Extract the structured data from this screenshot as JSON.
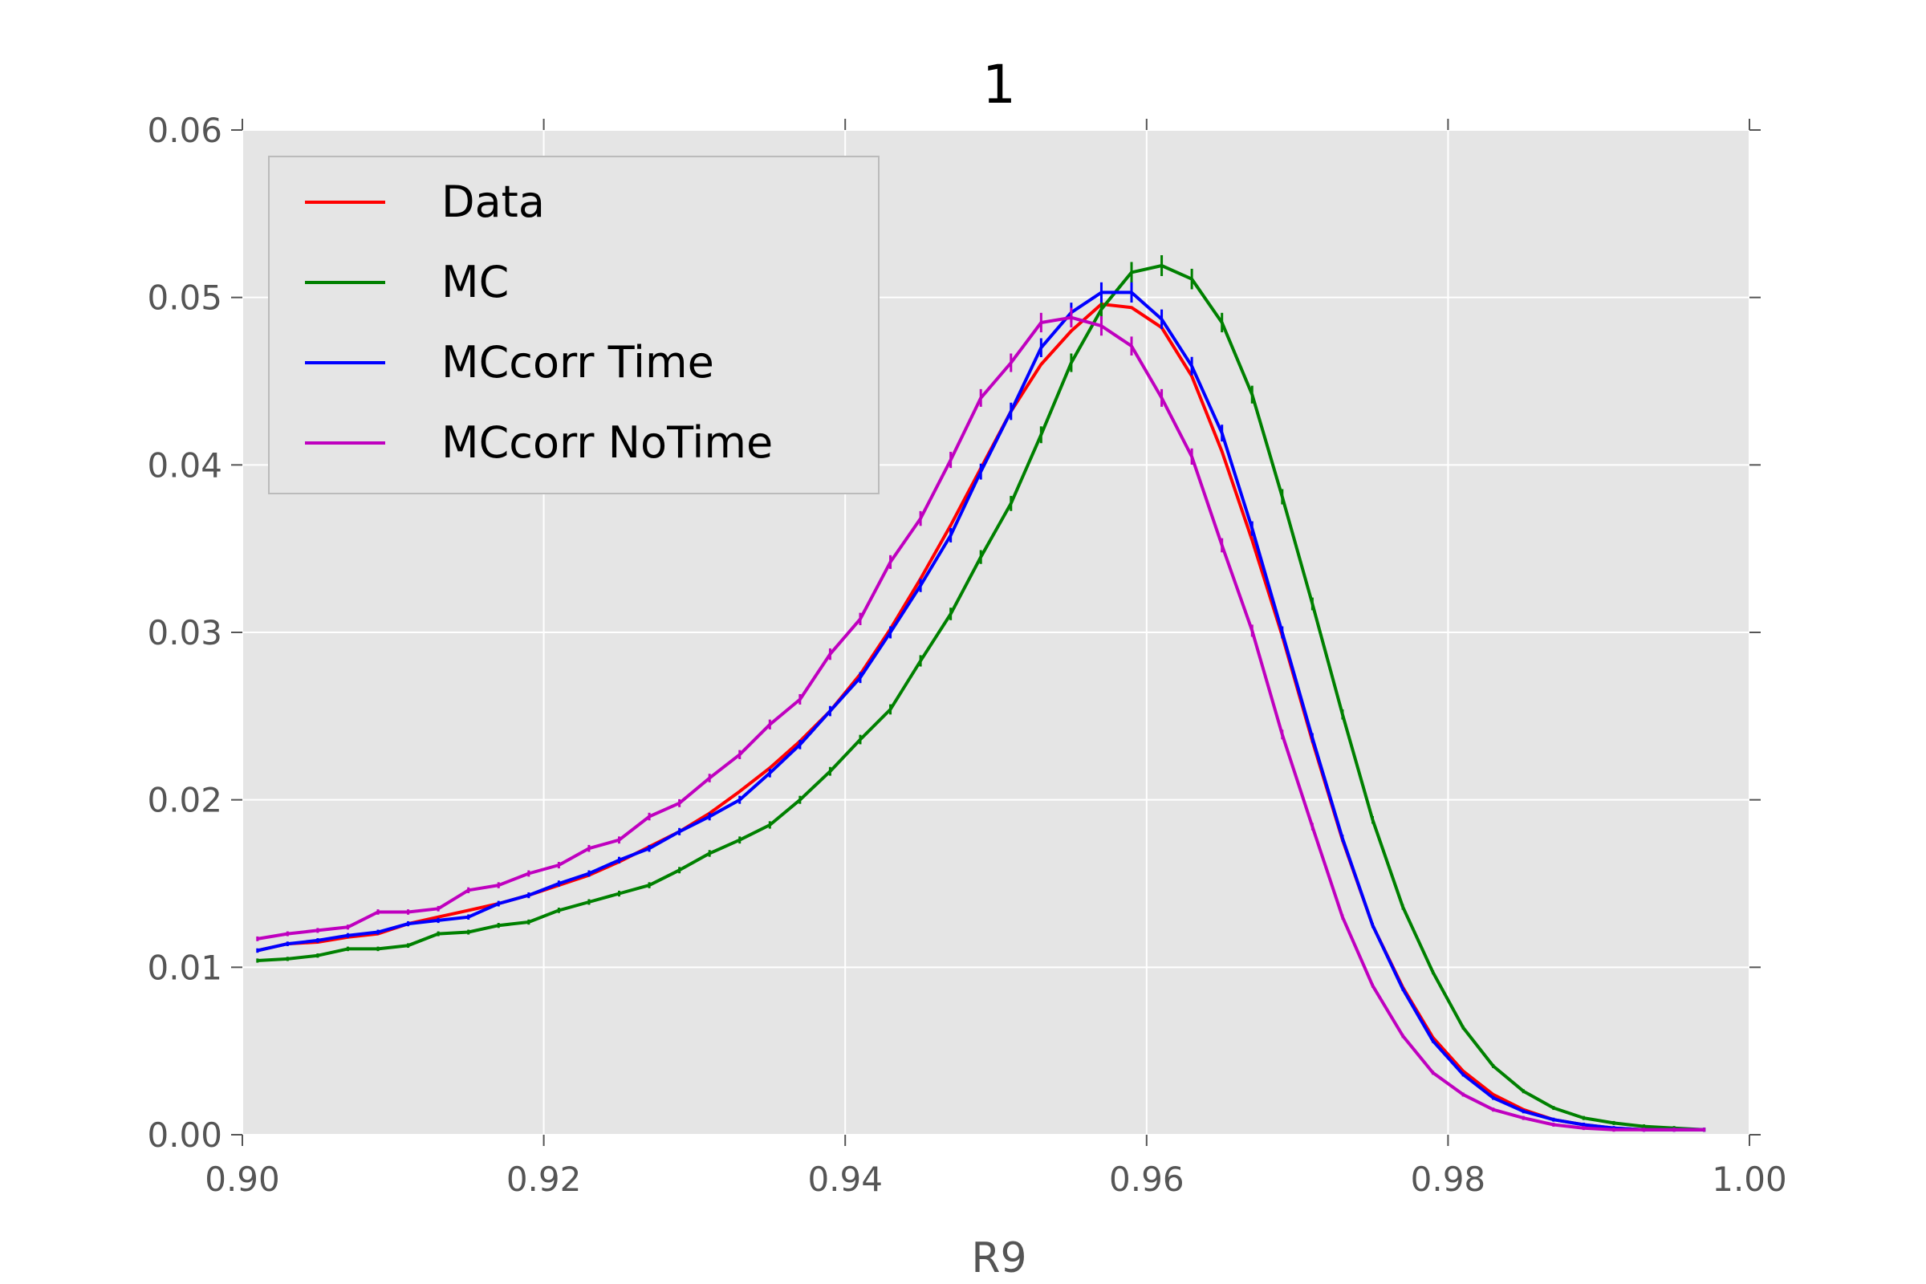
{
  "chart_data": {
    "type": "line",
    "title": "1",
    "xlabel": "R9",
    "ylabel": "",
    "xlim": [
      0.9,
      1.0
    ],
    "ylim": [
      0.0,
      0.06
    ],
    "xticks": [
      0.9,
      0.92,
      0.94,
      0.96,
      0.98,
      1.0
    ],
    "xtick_labels": [
      "0.90",
      "0.92",
      "0.94",
      "0.96",
      "0.98",
      "1.00"
    ],
    "yticks": [
      0.0,
      0.01,
      0.02,
      0.03,
      0.04,
      0.05,
      0.06
    ],
    "ytick_labels": [
      "0.00",
      "0.01",
      "0.02",
      "0.03",
      "0.04",
      "0.05",
      "0.06"
    ],
    "grid": true,
    "legend_position": "top-left",
    "x": [
      0.901,
      0.903,
      0.905,
      0.907,
      0.909,
      0.911,
      0.913,
      0.915,
      0.917,
      0.919,
      0.921,
      0.923,
      0.925,
      0.927,
      0.929,
      0.931,
      0.933,
      0.935,
      0.937,
      0.939,
      0.941,
      0.943,
      0.945,
      0.947,
      0.949,
      0.951,
      0.953,
      0.955,
      0.957,
      0.959,
      0.961,
      0.963,
      0.965,
      0.967,
      0.969,
      0.971,
      0.973,
      0.975,
      0.977,
      0.979,
      0.981,
      0.983,
      0.985,
      0.987,
      0.989,
      0.991,
      0.993,
      0.995,
      0.997
    ],
    "series": [
      {
        "name": "Data",
        "color": "#ff0000",
        "error_bars": false,
        "values": [
          0.011,
          0.0114,
          0.0115,
          0.0118,
          0.012,
          0.0126,
          0.013,
          0.0134,
          0.0138,
          0.0143,
          0.0149,
          0.0155,
          0.0163,
          0.0172,
          0.0181,
          0.0192,
          0.0205,
          0.0219,
          0.0235,
          0.0253,
          0.0275,
          0.0302,
          0.0332,
          0.0364,
          0.0398,
          0.0432,
          0.046,
          0.048,
          0.0496,
          0.0494,
          0.0482,
          0.0453,
          0.0408,
          0.0355,
          0.0298,
          0.0235,
          0.0176,
          0.0125,
          0.0088,
          0.0058,
          0.0038,
          0.0024,
          0.0015,
          0.0009,
          0.0006,
          0.0004,
          0.0003,
          0.0003,
          0.0003
        ]
      },
      {
        "name": "MC",
        "color": "#008000",
        "error_bars": true,
        "values": [
          0.0104,
          0.0105,
          0.0107,
          0.0111,
          0.0111,
          0.0113,
          0.012,
          0.0121,
          0.0125,
          0.0127,
          0.0134,
          0.0139,
          0.0144,
          0.0149,
          0.0158,
          0.0168,
          0.0176,
          0.0185,
          0.02,
          0.0217,
          0.0236,
          0.0254,
          0.0283,
          0.0311,
          0.0345,
          0.0377,
          0.0418,
          0.0461,
          0.0493,
          0.0515,
          0.0519,
          0.0511,
          0.0485,
          0.0442,
          0.0381,
          0.0317,
          0.0251,
          0.0188,
          0.0136,
          0.0097,
          0.0064,
          0.0041,
          0.0026,
          0.0016,
          0.001,
          0.0007,
          0.0005,
          0.0004,
          0.0003
        ]
      },
      {
        "name": "MCcorr Time",
        "color": "#0000ff",
        "error_bars": true,
        "values": [
          0.011,
          0.0114,
          0.0116,
          0.0119,
          0.0121,
          0.0126,
          0.0128,
          0.013,
          0.0138,
          0.0143,
          0.015,
          0.0156,
          0.0164,
          0.0171,
          0.0181,
          0.019,
          0.02,
          0.0216,
          0.0233,
          0.0253,
          0.0273,
          0.03,
          0.0328,
          0.0358,
          0.0396,
          0.0432,
          0.047,
          0.0491,
          0.0503,
          0.0503,
          0.0487,
          0.0459,
          0.0419,
          0.0362,
          0.03,
          0.0237,
          0.0177,
          0.0125,
          0.0087,
          0.0056,
          0.0036,
          0.0022,
          0.0014,
          0.0009,
          0.0006,
          0.0004,
          0.0003,
          0.0003,
          0.0003
        ]
      },
      {
        "name": "MCcorr NoTime",
        "color": "#bf00bf",
        "error_bars": true,
        "values": [
          0.0117,
          0.012,
          0.0122,
          0.0124,
          0.0133,
          0.0133,
          0.0135,
          0.0146,
          0.0149,
          0.0156,
          0.0161,
          0.0171,
          0.0176,
          0.019,
          0.0198,
          0.0213,
          0.0227,
          0.0245,
          0.026,
          0.0287,
          0.0308,
          0.0342,
          0.0368,
          0.0403,
          0.044,
          0.0461,
          0.0485,
          0.0488,
          0.0483,
          0.0471,
          0.044,
          0.0405,
          0.0352,
          0.0301,
          0.0239,
          0.0184,
          0.013,
          0.0089,
          0.0059,
          0.0037,
          0.0024,
          0.0015,
          0.001,
          0.0006,
          0.0004,
          0.0003,
          0.0003,
          0.0003,
          0.0003
        ]
      }
    ]
  }
}
